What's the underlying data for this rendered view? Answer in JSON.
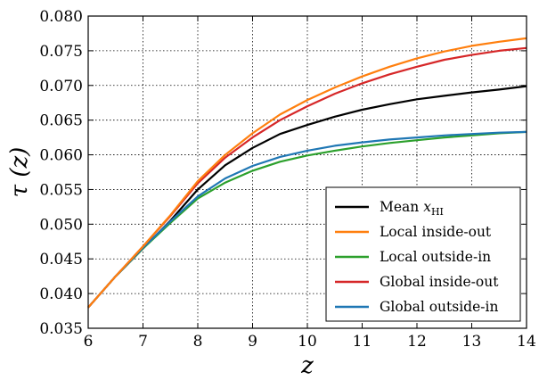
{
  "chart_data": {
    "type": "line",
    "title": "",
    "xlabel": "z",
    "ylabel": "τ (z)",
    "xlim": [
      6,
      14
    ],
    "ylim": [
      0.035,
      0.08
    ],
    "grid": true,
    "legend_placement": "bottom-right",
    "x_ticks": [
      "6",
      "7",
      "8",
      "9",
      "10",
      "11",
      "12",
      "13",
      "14"
    ],
    "y_ticks": [
      "0.035",
      "0.040",
      "0.045",
      "0.050",
      "0.055",
      "0.060",
      "0.065",
      "0.070",
      "0.075",
      "0.080"
    ],
    "x": [
      6,
      6.5,
      7,
      7.5,
      8,
      8.5,
      9,
      9.5,
      10,
      10.5,
      11,
      11.5,
      12,
      12.5,
      13,
      13.5,
      14
    ],
    "series": [
      {
        "name": "Mean x_HI",
        "legend_main": "Mean ",
        "legend_var": "x",
        "legend_sub": "HI",
        "color": "#000000",
        "values": [
          0.038,
          0.0425,
          0.0465,
          0.0505,
          0.055,
          0.0585,
          0.061,
          0.063,
          0.0643,
          0.0655,
          0.0665,
          0.0673,
          0.068,
          0.0685,
          0.069,
          0.0694,
          0.0699
        ]
      },
      {
        "name": "Local inside-out",
        "color": "#ff7f0e",
        "values": [
          0.038,
          0.0425,
          0.0468,
          0.0513,
          0.0562,
          0.06,
          0.0631,
          0.0658,
          0.0679,
          0.0697,
          0.0713,
          0.0727,
          0.0739,
          0.0749,
          0.0757,
          0.0763,
          0.0768
        ]
      },
      {
        "name": "Local outside-in",
        "color": "#2ca02c",
        "values": [
          0.038,
          0.0425,
          0.0465,
          0.0502,
          0.0537,
          0.056,
          0.0577,
          0.059,
          0.0599,
          0.0606,
          0.0612,
          0.0617,
          0.0621,
          0.0625,
          0.0628,
          0.0631,
          0.0633
        ]
      },
      {
        "name": "Global inside-out",
        "color": "#d62728",
        "values": [
          0.038,
          0.0425,
          0.0468,
          0.0512,
          0.0559,
          0.0596,
          0.0625,
          0.065,
          0.067,
          0.0688,
          0.0703,
          0.0716,
          0.0727,
          0.0737,
          0.0744,
          0.075,
          0.0754
        ]
      },
      {
        "name": "Global outside-in",
        "color": "#1f77b4",
        "values": [
          0.038,
          0.0425,
          0.0466,
          0.0504,
          0.054,
          0.0566,
          0.0584,
          0.0597,
          0.0606,
          0.0613,
          0.0618,
          0.0622,
          0.0625,
          0.0628,
          0.063,
          0.0632,
          0.0633
        ]
      }
    ]
  }
}
